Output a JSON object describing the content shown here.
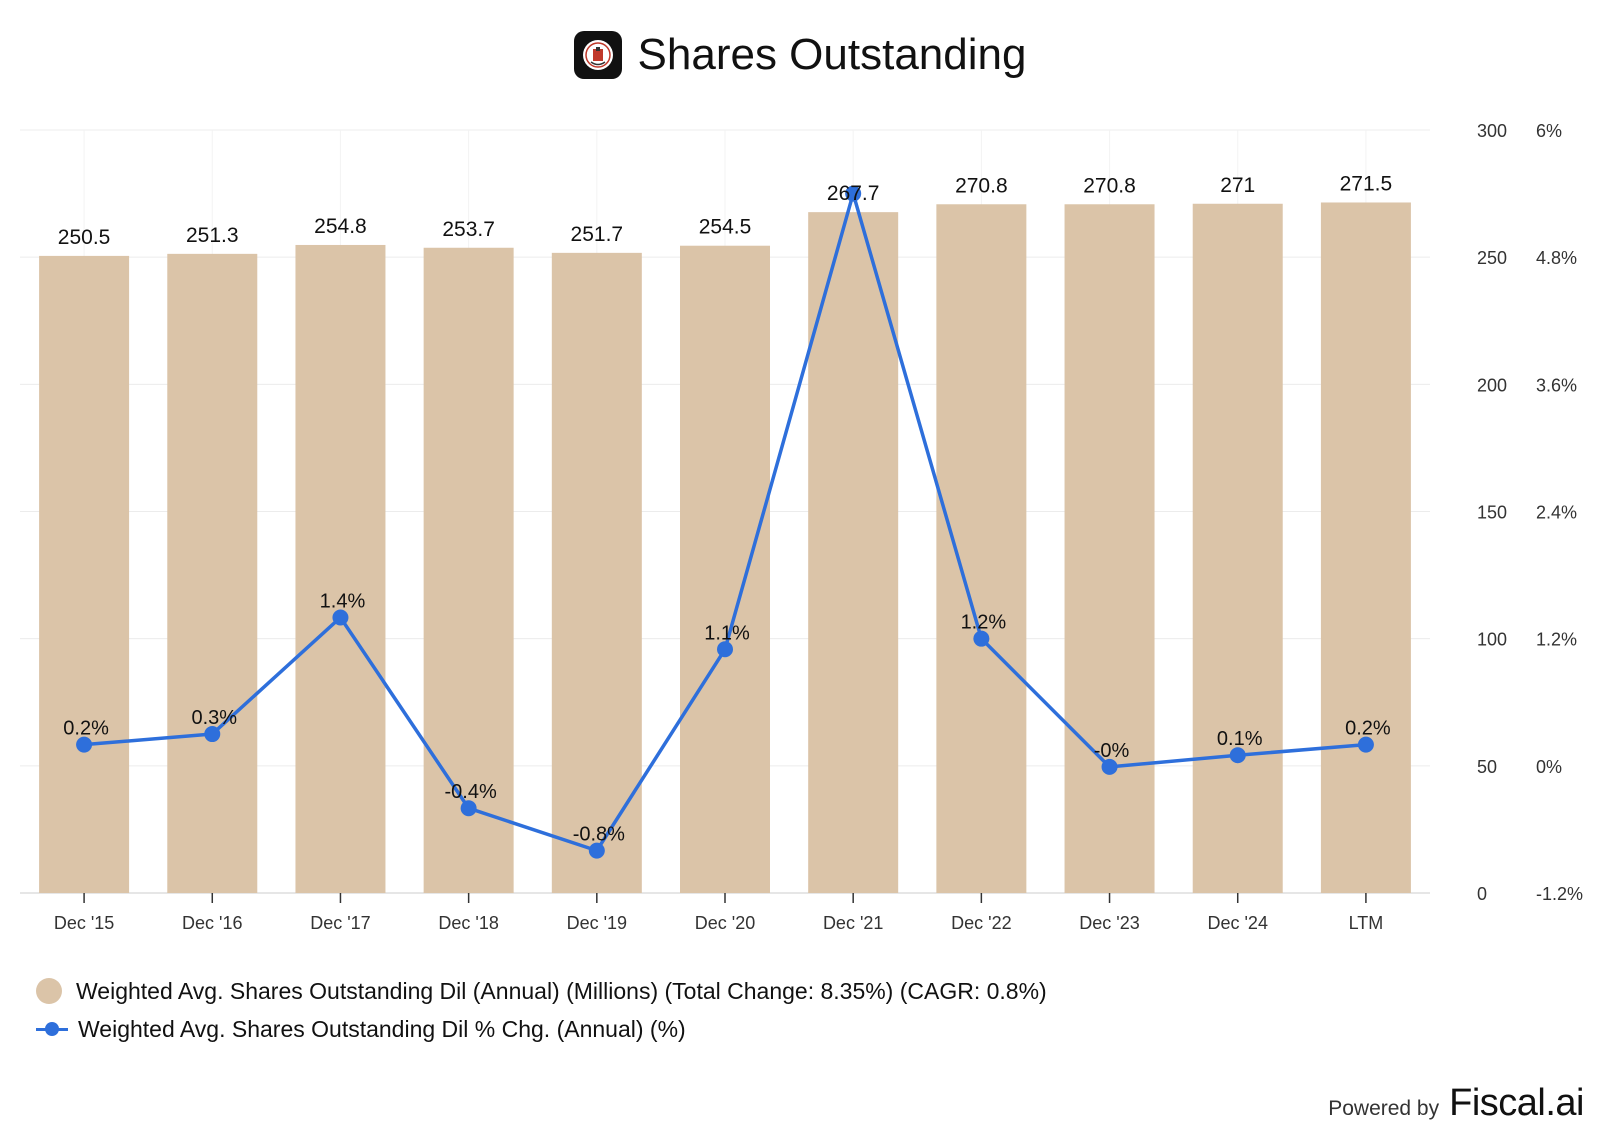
{
  "header": {
    "title": "Shares Outstanding",
    "logo_icon": "company-logo-icon"
  },
  "chart_data": {
    "type": "bar+line",
    "title": "Shares Outstanding",
    "categories": [
      "Dec '15",
      "Dec '16",
      "Dec '17",
      "Dec '18",
      "Dec '19",
      "Dec '20",
      "Dec '21",
      "Dec '22",
      "Dec '23",
      "Dec '24",
      "LTM"
    ],
    "series": [
      {
        "name": "Weighted Avg. Shares Outstanding Dil (Annual) (Millions) (Total Change: 8.35%) (CAGR: 0.8%)",
        "type": "bar",
        "axis": "left",
        "color": "#dbc4a8",
        "values": [
          250.5,
          251.3,
          254.8,
          253.7,
          251.7,
          254.5,
          267.7,
          270.8,
          270.8,
          271,
          271.5
        ],
        "labels": [
          "250.5",
          "251.3",
          "254.8",
          "253.7",
          "251.7",
          "254.5",
          "267.7",
          "270.8",
          "270.8",
          "271",
          "271.5"
        ]
      },
      {
        "name": "Weighted Avg. Shares Outstanding Dil % Chg. (Annual) (%)",
        "type": "line",
        "axis": "right",
        "color": "#2e6fdb",
        "values": [
          0.2,
          0.3,
          1.4,
          -0.4,
          -0.8,
          1.1,
          5.4,
          1.2,
          -0.01,
          0.1,
          0.2
        ],
        "labels": [
          "0.2%",
          "0.3%",
          "1.4%",
          "-0.4%",
          "-0.8%",
          "1.1%",
          "",
          "1.2%",
          "-0%",
          "0.1%",
          "0.2%"
        ]
      }
    ],
    "y_left": {
      "min": 0,
      "max": 300,
      "ticks": [
        "0",
        "50",
        "100",
        "150",
        "200",
        "250",
        "300"
      ]
    },
    "y_right": {
      "min": -1.2,
      "max": 6,
      "ticks": [
        "-1.2%",
        "0%",
        "1.2%",
        "2.4%",
        "3.6%",
        "4.8%",
        "6%"
      ]
    },
    "grid": true,
    "legend_position": "bottom-left"
  },
  "legend": [
    {
      "label": "Weighted Avg. Shares Outstanding Dil (Annual) (Millions) (Total Change: 8.35%) (CAGR: 0.8%)",
      "color": "#dbc4a8"
    },
    {
      "label": "Weighted Avg. Shares Outstanding Dil % Chg. (Annual) (%)",
      "color": "#2e6fdb"
    }
  ],
  "footer": {
    "powered_by": "Powered by",
    "brand": "Fiscal.ai"
  }
}
